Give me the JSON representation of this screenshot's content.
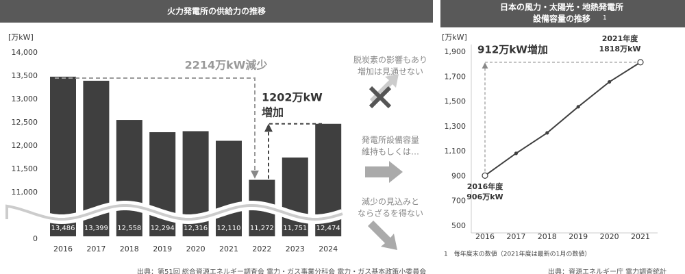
{
  "chart_data": [
    {
      "type": "bar",
      "title": "火力発電所の供給力の推移",
      "y_label": "[万kW]",
      "categories": [
        "2016",
        "2017",
        "2018",
        "2019",
        "2020",
        "2021",
        "2022",
        "2023",
        "2024"
      ],
      "values": [
        13486,
        13399,
        12558,
        12294,
        12316,
        12110,
        11272,
        11751,
        12474
      ],
      "value_labels": [
        "13,486",
        "13,399",
        "12,558",
        "12,294",
        "12,316",
        "12,110",
        "11,272",
        "11,751",
        "12,474"
      ],
      "color": "#3f3f3f",
      "ylim": [
        0,
        14000
      ],
      "yticks": [
        0,
        {
          "value": 11000,
          "label": "11,000"
        },
        {
          "value": 11500,
          "label": "11,500"
        },
        {
          "value": 12000,
          "label": "12,000"
        },
        {
          "value": 12500,
          "label": "12,500"
        },
        {
          "value": 13000,
          "label": "13,000"
        },
        {
          "value": 13500,
          "label": "13,500"
        },
        {
          "value": 14000,
          "label": "14,000"
        }
      ],
      "axis_break": true,
      "annotations": {
        "decrease": "2214万kW減少",
        "increase": [
          "1202万kW",
          "増加"
        ],
        "outlook": [
          [
            "脱炭素の影響もあり",
            "増加は見通せない"
          ],
          [
            "発電所設備容量",
            "維持もしくは…"
          ],
          [
            "減少の見込みと",
            "ならざるを得ない"
          ]
        ]
      },
      "source": "出典：第51回 総合資源エネルギー調査会 電力・ガス事業分科会 電力・ガス基本政策小委員会"
    },
    {
      "type": "line",
      "title": [
        "日本の風力・太陽光・地熱発電所",
        "設備容量の推移"
      ],
      "title_note": "1",
      "y_label": "[万kW]",
      "categories": [
        "2016",
        "2017",
        "2018",
        "2019",
        "2020",
        "2021"
      ],
      "values": [
        906,
        1085,
        1250,
        1460,
        1660,
        1818
      ],
      "color": "#404040",
      "ylim": [
        500,
        1900
      ],
      "yticks": [
        500,
        700,
        900,
        {
          "value": 1100,
          "label": "1,100"
        },
        {
          "value": 1300,
          "label": "1,300"
        },
        {
          "value": 1500,
          "label": "1,500"
        },
        {
          "value": 1700,
          "label": "1,700"
        },
        {
          "value": 1900,
          "label": "1,900"
        }
      ],
      "annotations": {
        "increase": "912万kW増加",
        "end": [
          "2021年度",
          "1818万kW"
        ],
        "start": [
          "2016年度",
          "906万kW"
        ]
      },
      "footnote": "1　毎年度末の数値（2021年度は最新の1月の数値）",
      "source": "出典：資源エネルギー庁 電力調査統計"
    }
  ]
}
